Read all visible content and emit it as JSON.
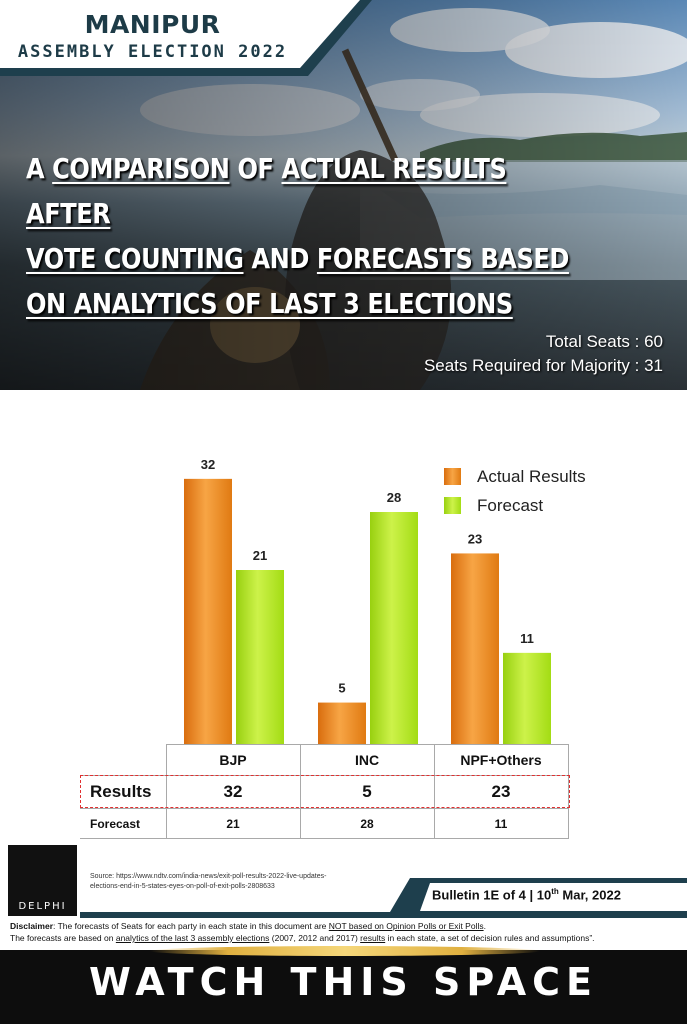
{
  "header": {
    "brand_title": "MANIPUR",
    "brand_subtitle": "ASSEMBLY ELECTION 2022",
    "headline_parts": [
      "A ",
      "COMPARISON",
      " OF ",
      "ACTUAL RESULTS AFTER",
      "VOTE COUNTING",
      " AND ",
      "FORECASTS BASED",
      "ON ANALYTICS OF LAST 3 ELECTIONS"
    ],
    "total_seats": "Total Seats : 60",
    "majority": "Seats Required for Majority : 31"
  },
  "chart_data": {
    "type": "bar",
    "categories": [
      "BJP",
      "INC",
      "NPF+Others"
    ],
    "series": [
      {
        "name": "Actual Results",
        "values": [
          32,
          5,
          23
        ],
        "color": "#f08a1c"
      },
      {
        "name": "Forecast",
        "values": [
          21,
          28,
          11
        ],
        "color": "#b2e81e"
      }
    ],
    "ylim": [
      0,
      35
    ],
    "grid": false,
    "legend": "top-right"
  },
  "table": {
    "headers": [
      "BJP",
      "INC",
      "NPF+Others"
    ],
    "rows": [
      {
        "label": "Results",
        "values": [
          "32",
          "5",
          "23"
        ]
      },
      {
        "label": "Forecast",
        "values": [
          "21",
          "28",
          "11"
        ]
      }
    ]
  },
  "footer": {
    "logo_text": "DELPHI",
    "source_line1": "Source: https://www.ndtv.com/india-news/exit-poll-results-2022-live-updates-",
    "source_line2": "elections-end-in-5-states-eyes-on-poll-of-exit-polls-2808633",
    "bulletin_prefix": "Bulletin 1E of 4 | 10",
    "bulletin_sup": "th",
    "bulletin_suffix": " Mar, 2022",
    "disclaimer_label": "Disclaimer",
    "disclaimer_1a": ": The forecasts of Seats for each party in each state in this document are ",
    "disclaimer_1b": "NOT based on Opinion Polls or Exit Polls",
    "disclaimer_1c": ".",
    "disclaimer_2a": "The forecasts are based on ",
    "disclaimer_2b": "analytics of the last 3 assembly elections",
    "disclaimer_2c": " (2007, 2012 and 2017) ",
    "disclaimer_2d": "results",
    "disclaimer_2e": " in each state, a set of decision rules and assumptions”.",
    "watch": "WATCH THIS SPACE"
  }
}
